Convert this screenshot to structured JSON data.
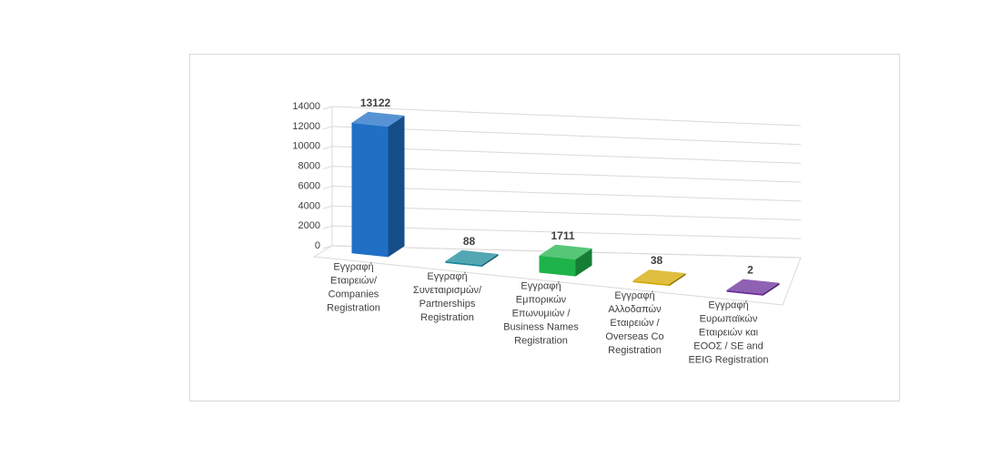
{
  "chart_data": {
    "type": "bar",
    "view": "3d",
    "categories": [
      [
        "Εγγραφή",
        "Εταιρειών/",
        "Companies",
        "Registration"
      ],
      [
        "Εγγραφή",
        "Συνεταιρισμών/",
        "Partnerships",
        "Registration"
      ],
      [
        "Εγγραφή",
        "Εμπορικών",
        "Επωνυμιών /",
        "Business Names",
        "Registration"
      ],
      [
        "Εγγραφή",
        "Αλλοδαπών",
        "Εταιρειών /",
        "Overseas Co",
        "Registration"
      ],
      [
        "Εγγραφή",
        "Ευρωπαϊκών",
        "Εταιρειών και",
        "ΕΟΟΣ / SE and",
        "EEIG Registration"
      ]
    ],
    "values": [
      13122,
      88,
      1711,
      38,
      2
    ],
    "value_labels": [
      "13122",
      "88",
      "1711",
      "38",
      "2"
    ],
    "colors": [
      "#1f6fc5",
      "#1a8a9a",
      "#1eb34a",
      "#d4a800",
      "#6a2c9a"
    ],
    "ylim": [
      0,
      14000
    ],
    "yticks": [
      "0",
      "2000",
      "4000",
      "6000",
      "8000",
      "10000",
      "12000",
      "14000"
    ],
    "grid": true,
    "legend": "none",
    "title": "",
    "xlabel": "",
    "ylabel": ""
  }
}
